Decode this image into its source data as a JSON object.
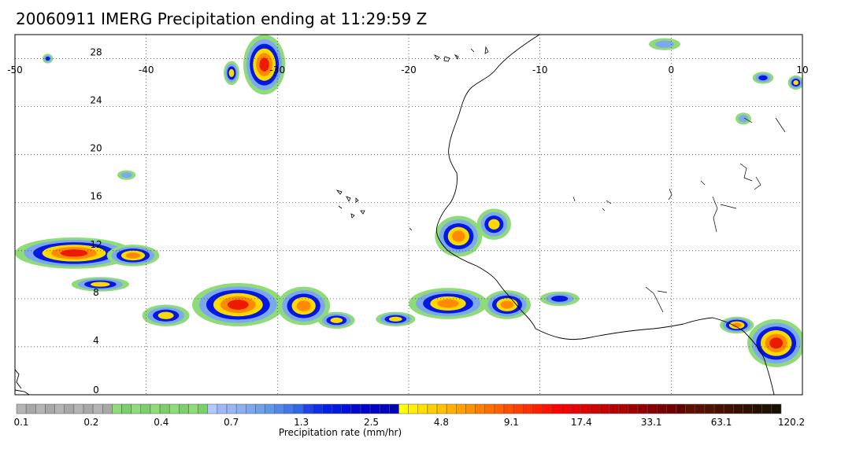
{
  "title": "20060911 IMERG Precipitation ending at 11:29:59 Z",
  "map": {
    "lon_range": [
      -50,
      10
    ],
    "lat_range": [
      0,
      30
    ],
    "lon_ticks": [
      "-50",
      "-40",
      "-30",
      "-20",
      "-10",
      "0",
      "10"
    ],
    "lat_ticks": [
      "0",
      "4",
      "8",
      "12",
      "16",
      "20",
      "24",
      "28"
    ],
    "grid": "dotted",
    "coastline_color": "#000000"
  },
  "colorbar": {
    "title": "Precipitation rate (mm/hr)",
    "tick_labels": [
      "0.1",
      "0.2",
      "0.4",
      "0.7",
      "1.3",
      "2.5",
      "4.8",
      "9.1",
      "17.4",
      "33.1",
      "63.1",
      "120.2"
    ],
    "colors": [
      "#b4b4b4",
      "#a8a8a8",
      "#b4b4b4",
      "#a8a8a8",
      "#b4b4b4",
      "#a8a8a8",
      "#b4b4b4",
      "#a8a8a8",
      "#b4b4b4",
      "#a8a8a8",
      "#8fdb7a",
      "#7ad06a",
      "#8fdb7a",
      "#7ad06a",
      "#8fdb7a",
      "#7ad06a",
      "#8fdb7a",
      "#7ad06a",
      "#8fdb7a",
      "#7ad06a",
      "#b4c8ff",
      "#a0b8fa",
      "#9ab4f5",
      "#8cb0f2",
      "#7ea8ee",
      "#70a0ea",
      "#5e98e8",
      "#5088e8",
      "#4078ea",
      "#3068e8",
      "#2040e8",
      "#1030e8",
      "#0020e8",
      "#0018e0",
      "#0010d8",
      "#0008d0",
      "#0000d0",
      "#0000c8",
      "#0000c0",
      "#0000b8",
      "#ffff00",
      "#fff000",
      "#ffe000",
      "#ffd000",
      "#ffc000",
      "#ffb000",
      "#ffa000",
      "#ff9000",
      "#ff8000",
      "#ff7000",
      "#ff6000",
      "#ff5000",
      "#ff4000",
      "#ff3000",
      "#ff2000",
      "#ff1000",
      "#ff0000",
      "#f40000",
      "#e80000",
      "#dc0000",
      "#d00000",
      "#c40000",
      "#b80000",
      "#ac0000",
      "#a00000",
      "#940000",
      "#880000",
      "#7c0000",
      "#700000",
      "#640000",
      "#601000",
      "#581000",
      "#501000",
      "#481000",
      "#401000",
      "#381000",
      "#301000",
      "#281000",
      "#201000",
      "#181000"
    ]
  },
  "precip_cells": [
    {
      "lon": -45.5,
      "lat": 11.8,
      "rx": 4.5,
      "ry": 1.3,
      "peak": 5
    },
    {
      "lon": -41.0,
      "lat": 11.6,
      "rx": 2.0,
      "ry": 0.9,
      "peak": 4
    },
    {
      "lon": -43.5,
      "lat": 9.2,
      "rx": 2.2,
      "ry": 0.6,
      "peak": 3
    },
    {
      "lon": -33.0,
      "lat": 7.5,
      "rx": 3.5,
      "ry": 1.8,
      "peak": 5
    },
    {
      "lon": -28.0,
      "lat": 7.4,
      "rx": 2.0,
      "ry": 1.6,
      "peak": 4
    },
    {
      "lon": -38.5,
      "lat": 6.6,
      "rx": 1.8,
      "ry": 0.9,
      "peak": 3
    },
    {
      "lon": -25.5,
      "lat": 6.2,
      "rx": 1.4,
      "ry": 0.7,
      "peak": 3
    },
    {
      "lon": -21.0,
      "lat": 6.3,
      "rx": 1.5,
      "ry": 0.6,
      "peak": 3
    },
    {
      "lon": -17.0,
      "lat": 7.6,
      "rx": 3.0,
      "ry": 1.3,
      "peak": 4
    },
    {
      "lon": -12.5,
      "lat": 7.5,
      "rx": 1.8,
      "ry": 1.2,
      "peak": 4
    },
    {
      "lon": -16.2,
      "lat": 13.2,
      "rx": 1.8,
      "ry": 1.7,
      "peak": 4
    },
    {
      "lon": -13.5,
      "lat": 14.2,
      "rx": 1.3,
      "ry": 1.3,
      "peak": 3
    },
    {
      "lon": -31.0,
      "lat": 27.5,
      "rx": 1.6,
      "ry": 2.5,
      "peak": 5
    },
    {
      "lon": -33.5,
      "lat": 26.8,
      "rx": 0.6,
      "ry": 1.0,
      "peak": 3
    },
    {
      "lon": 8.0,
      "lat": 4.3,
      "rx": 2.2,
      "ry": 2.0,
      "peak": 5
    },
    {
      "lon": 5.0,
      "lat": 5.8,
      "rx": 1.3,
      "ry": 0.7,
      "peak": 4
    },
    {
      "lon": 9.5,
      "lat": 26.0,
      "rx": 0.6,
      "ry": 0.6,
      "peak": 3
    },
    {
      "lon": 7.0,
      "lat": 26.4,
      "rx": 0.8,
      "ry": 0.5,
      "peak": 2
    },
    {
      "lon": -8.5,
      "lat": 8.0,
      "rx": 1.5,
      "ry": 0.6,
      "peak": 2
    },
    {
      "lon": -41.5,
      "lat": 18.3,
      "rx": 0.7,
      "ry": 0.4,
      "peak": 1
    },
    {
      "lon": -47.5,
      "lat": 28.0,
      "rx": 0.4,
      "ry": 0.4,
      "peak": 2
    },
    {
      "lon": -0.5,
      "lat": 29.2,
      "rx": 1.2,
      "ry": 0.5,
      "peak": 1
    },
    {
      "lon": 5.5,
      "lat": 23.0,
      "rx": 0.6,
      "ry": 0.5,
      "peak": 1
    }
  ]
}
